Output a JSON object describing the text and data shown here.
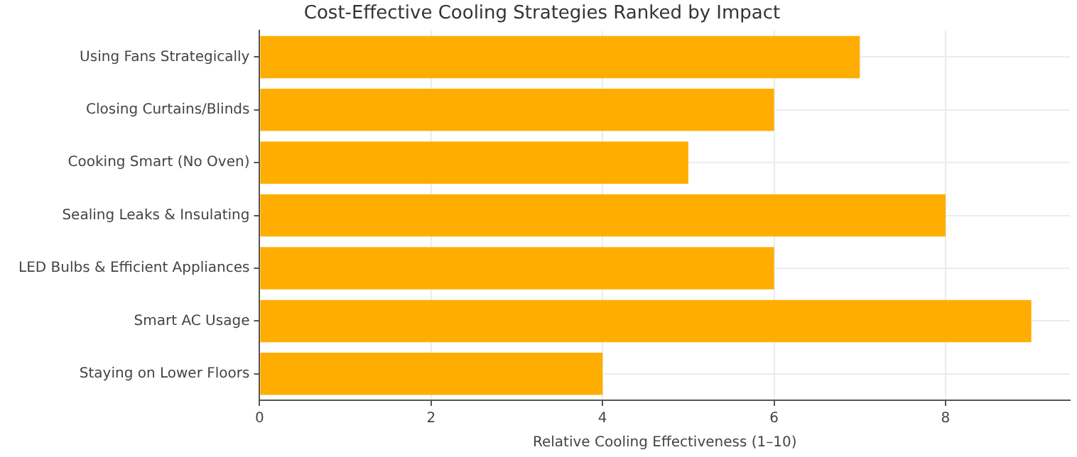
{
  "chart_data": {
    "type": "bar",
    "orientation": "horizontal",
    "title": "Cost-Effective Cooling Strategies Ranked by Impact",
    "xlabel": "Relative Cooling Effectiveness (1–10)",
    "categories": [
      "Using Fans Strategically",
      "Closing Curtains/Blinds",
      "Cooking Smart (No Oven)",
      "Sealing Leaks & Insulating",
      "LED Bulbs & Efficient Appliances",
      "Smart AC Usage",
      "Staying on Lower Floors"
    ],
    "values": [
      7,
      6,
      5,
      8,
      6,
      9,
      4
    ],
    "color": "#ffad00",
    "xlim": [
      0,
      9.45
    ],
    "xticks": [
      0,
      2,
      4,
      6,
      8
    ],
    "grid": true
  }
}
